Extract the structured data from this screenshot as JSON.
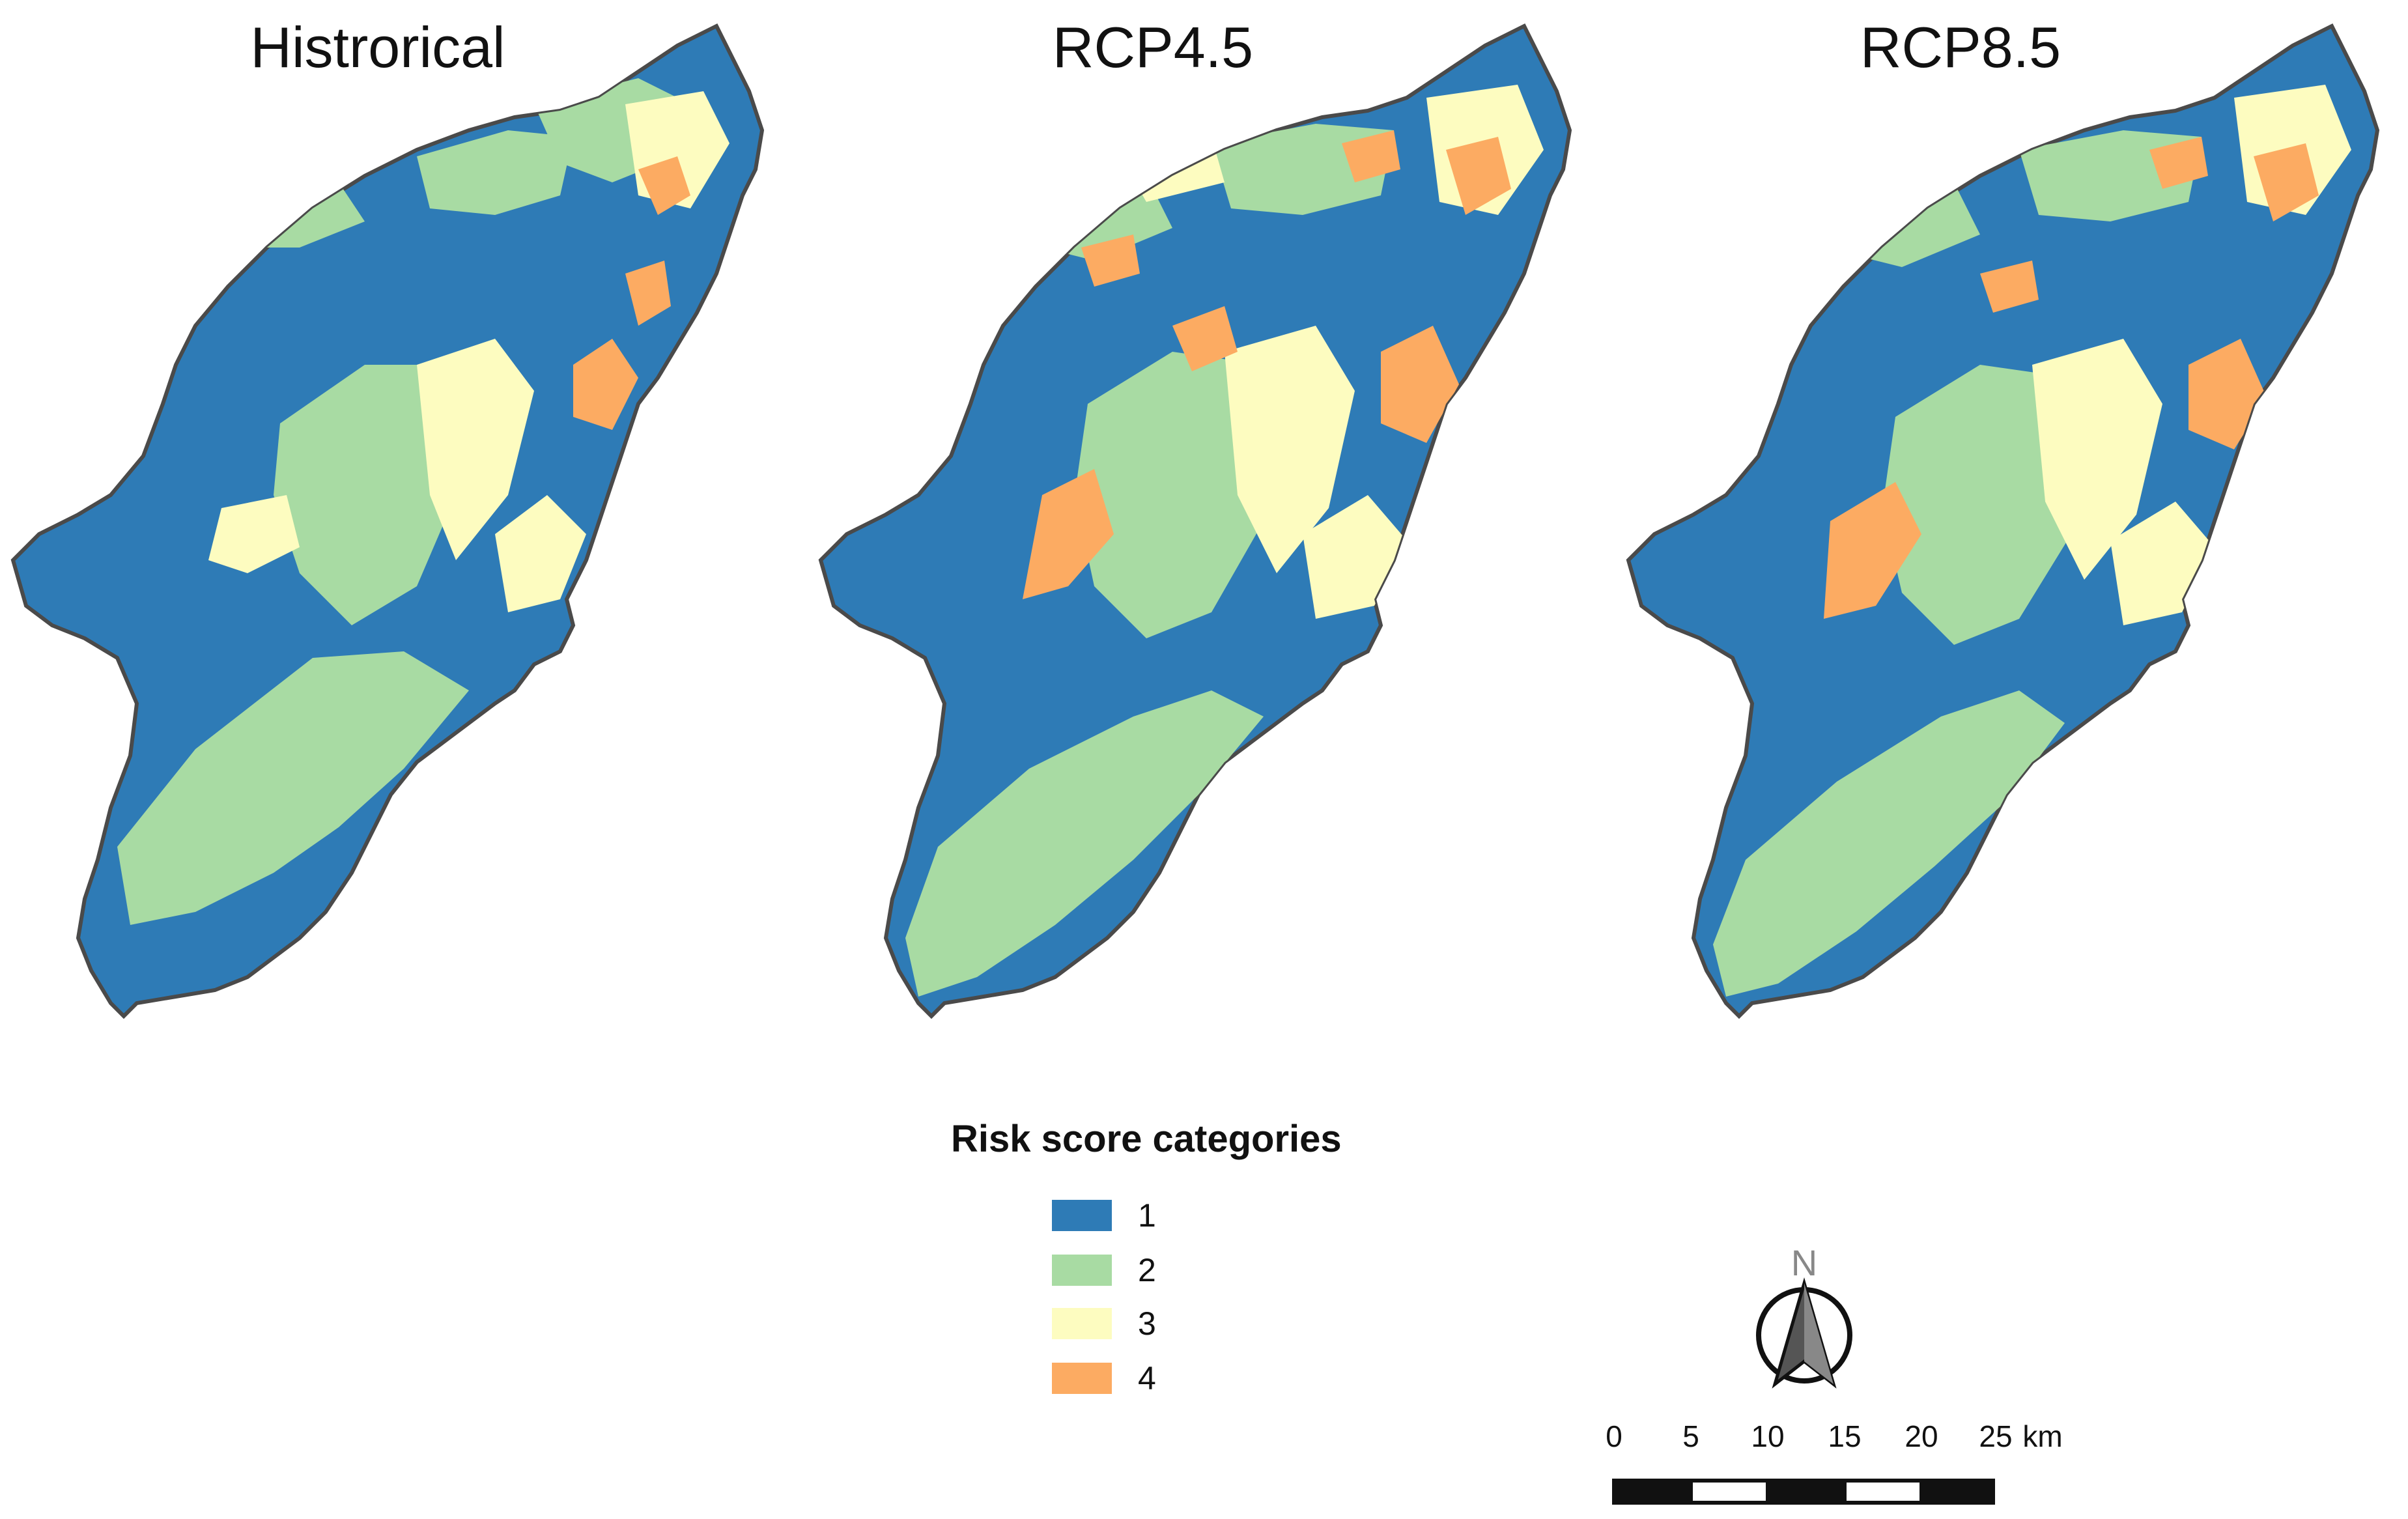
{
  "panels": [
    {
      "title": "Histrorical"
    },
    {
      "title": "RCP4.5"
    },
    {
      "title": "RCP8.5"
    }
  ],
  "legend": {
    "title": "Risk score categories",
    "items": [
      {
        "label": "1",
        "color": "#2e7bb6"
      },
      {
        "label": "2",
        "color": "#a8dba3"
      },
      {
        "label": "3",
        "color": "#fdfcc0"
      },
      {
        "label": "4",
        "color": "#fcab62"
      }
    ]
  },
  "north_arrow": {
    "label": "N"
  },
  "scale_bar": {
    "ticks": [
      "0",
      "5",
      "10",
      "15",
      "20",
      "25"
    ],
    "unit": "km"
  }
}
